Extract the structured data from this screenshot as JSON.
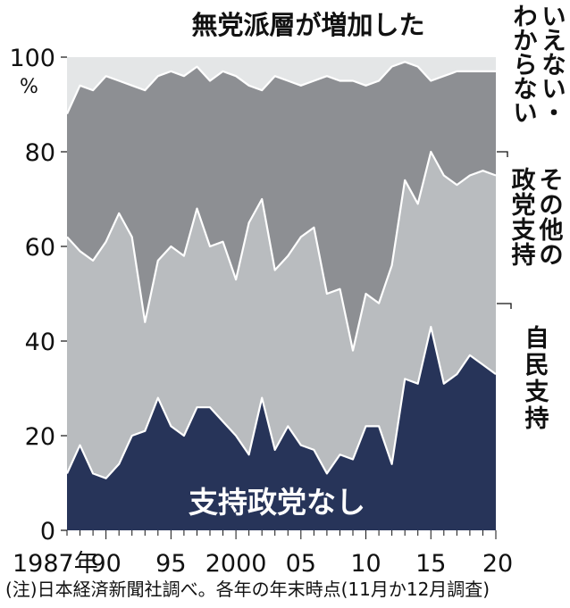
{
  "title": "無党派層が増加した",
  "footnote": "(注)日本経済新聞社調べ。各年の年末時点(11月か12月調査)",
  "colors": {
    "none_support": "#273459",
    "ldp": "#b9bcbf",
    "other": "#8d8f93",
    "dont_know": "#e4e6e7",
    "line": "#ffffff"
  },
  "chart_data": {
    "type": "area",
    "stacked": true,
    "x": [
      1987,
      1988,
      1989,
      1990,
      1991,
      1992,
      1993,
      1994,
      1995,
      1996,
      1997,
      1998,
      1999,
      2000,
      2001,
      2002,
      2003,
      2004,
      2005,
      2006,
      2007,
      2008,
      2009,
      2010,
      2011,
      2012,
      2013,
      2014,
      2015,
      2016,
      2017,
      2018,
      2019,
      2020
    ],
    "cumulative": {
      "none_support": [
        12,
        18,
        12,
        11,
        14,
        20,
        21,
        28,
        22,
        20,
        26,
        26,
        23,
        20,
        16,
        28,
        17,
        22,
        18,
        17,
        12,
        16,
        15,
        22,
        22,
        14,
        32,
        31,
        43,
        31,
        33,
        37,
        35,
        33
      ],
      "ldp": [
        62,
        59,
        57,
        61,
        67,
        62,
        44,
        57,
        60,
        58,
        68,
        60,
        61,
        53,
        65,
        70,
        55,
        58,
        62,
        64,
        50,
        51,
        38,
        50,
        48,
        56,
        74,
        69,
        80,
        75,
        73,
        75,
        76,
        75
      ],
      "other": [
        88,
        94,
        93,
        96,
        95,
        94,
        93,
        96,
        97,
        96,
        98,
        95,
        97,
        96,
        94,
        93,
        96,
        95,
        94,
        95,
        96,
        95,
        95,
        94,
        95,
        98,
        99,
        98,
        95,
        96,
        97,
        97,
        97,
        97
      ],
      "dont_know": [
        100,
        100,
        100,
        100,
        100,
        100,
        100,
        100,
        100,
        100,
        100,
        100,
        100,
        100,
        100,
        100,
        100,
        100,
        100,
        100,
        100,
        100,
        100,
        100,
        100,
        100,
        100,
        100,
        100,
        100,
        100,
        100,
        100,
        100
      ]
    },
    "series": [
      {
        "name": "支持政党なし",
        "key": "none_support"
      },
      {
        "name": "自民支持",
        "key": "ldp"
      },
      {
        "name": "その他の政党支持",
        "key": "other"
      },
      {
        "name": "いえない・わからない",
        "key": "dont_know"
      }
    ],
    "ylim": [
      0,
      100
    ],
    "yticks": [
      "0",
      "20",
      "40",
      "60",
      "80",
      "100"
    ],
    "ylabel_unit": "%",
    "xticks": [
      {
        "x": 1987,
        "label": "1987年"
      },
      {
        "x": 1990,
        "label": "90"
      },
      {
        "x": 1995,
        "label": "95"
      },
      {
        "x": 2000,
        "label": "2000"
      },
      {
        "x": 2005,
        "label": "05"
      },
      {
        "x": 2010,
        "label": "10"
      },
      {
        "x": 2015,
        "label": "15"
      },
      {
        "x": 2020,
        "label": "20"
      }
    ],
    "labels": {
      "none_support": "支持政党なし",
      "ldp": [
        "自",
        "民",
        "支",
        "持"
      ],
      "other": [
        [
          "そ",
          "の",
          "他",
          "の"
        ],
        [
          "政",
          "党",
          "支",
          "持"
        ]
      ],
      "dont_know": [
        [
          "い",
          "え",
          "な",
          "い",
          "・"
        ],
        [
          "わ",
          "か",
          "ら",
          "な",
          "い"
        ]
      ]
    }
  }
}
